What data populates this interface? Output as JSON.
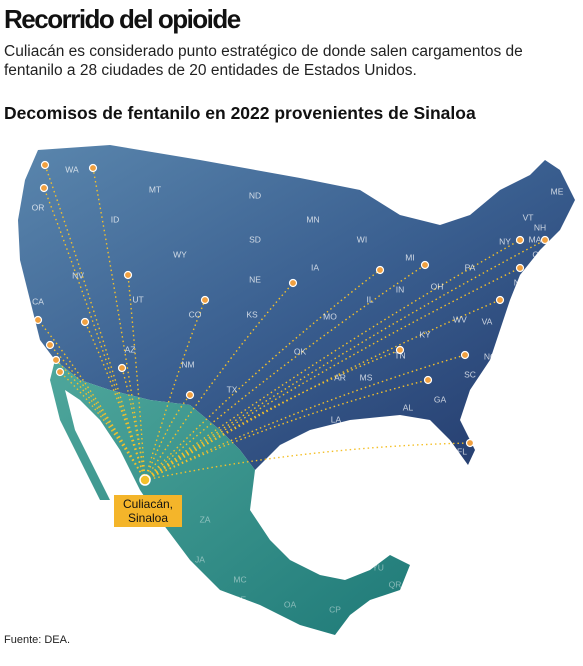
{
  "header": {
    "title": "Recorrido del opioide",
    "subtitle": "Culiacán es considerado punto estratégico de donde salen cargamentos de fentanilo a 28 ciudades de 20 entidades de Estados Unidos.",
    "heading": "Decomisos de fentanilo en 2022 provenientes de Sinaloa"
  },
  "map": {
    "origin_label": "Culiacán, Sinaloa",
    "us_states": [
      "WA",
      "OR",
      "ID",
      "MT",
      "ND",
      "MN",
      "SD",
      "WY",
      "NE",
      "IA",
      "WI",
      "MI",
      "NY",
      "VT",
      "NH",
      "ME",
      "MA",
      "CT",
      "RI",
      "PA",
      "NJ",
      "DE",
      "OH",
      "IN",
      "IL",
      "NV",
      "UT",
      "CO",
      "KS",
      "MO",
      "KY",
      "WV",
      "VA",
      "CA",
      "AZ",
      "NM",
      "OK",
      "TN",
      "NC",
      "AR",
      "MS",
      "SC",
      "AL",
      "GA",
      "TX",
      "LA",
      "FL"
    ],
    "mx_states": [
      "ZA",
      "JA",
      "MC",
      "GE",
      "OA",
      "YU",
      "QR",
      "CP"
    ]
  },
  "footer": {
    "source": "Fuente: DEA."
  }
}
